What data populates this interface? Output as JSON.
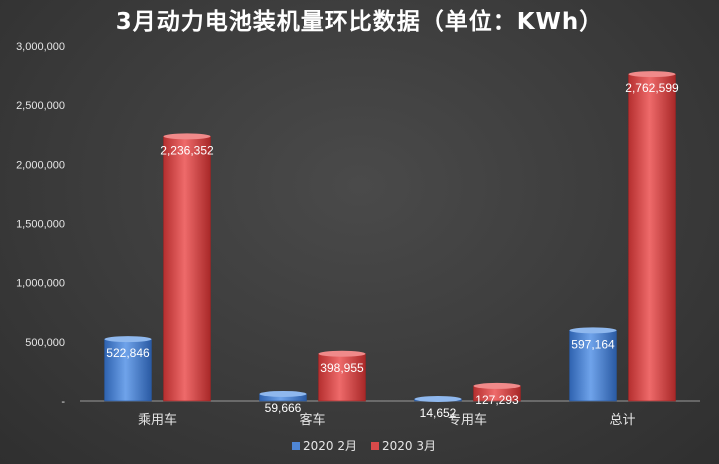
{
  "chart_data": {
    "type": "bar",
    "title": "3月动力电池装机量环比数据（单位：KWh）",
    "categories": [
      "乘用车",
      "客车",
      "专用车",
      "总计"
    ],
    "series": [
      {
        "name": "2020 2月",
        "values": [
          522846,
          59666,
          14652,
          597164
        ],
        "labels": [
          "522,846",
          "59,666",
          "14,652",
          "597,164"
        ],
        "color": "#4f86d4"
      },
      {
        "name": "2020 3月",
        "values": [
          2236352,
          398955,
          127293,
          2762599
        ],
        "labels": [
          "2,236,352",
          "398,955",
          "127,293",
          "2,762,599"
        ],
        "color": "#d94a4a"
      }
    ],
    "ylim": [
      0,
      3000000
    ],
    "yticks": [
      "-",
      "500,000",
      "1,000,000",
      "1,500,000",
      "2,000,000",
      "2,500,000",
      "3,000,000"
    ],
    "ytick_values": [
      0,
      500000,
      1000000,
      1500000,
      2000000,
      2500000,
      3000000
    ],
    "grid": false,
    "legend_position": "bottom"
  }
}
